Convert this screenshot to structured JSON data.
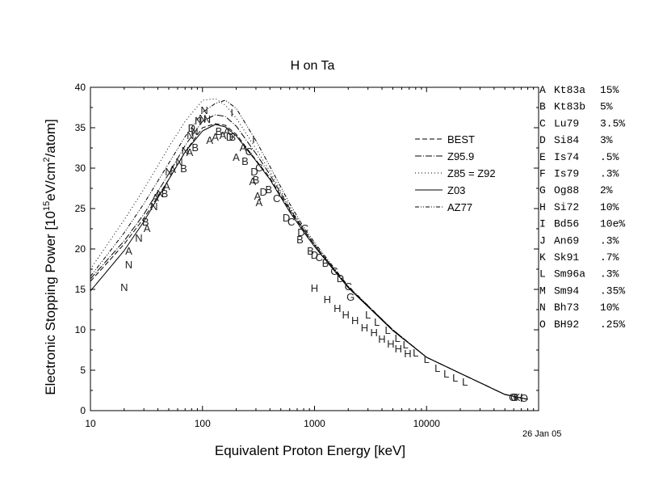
{
  "chart_data": {
    "type": "line",
    "title": "H on Ta",
    "xlabel": "Equivalent Proton Energy [keV]",
    "ylabel": {
      "pre": "Electronic Stopping Power [10",
      "sup1": "15",
      "mid": "eV/cm",
      "sup2": "2",
      "post": "/atom]"
    },
    "x_scale": "log",
    "xlim": [
      10,
      100000
    ],
    "ylim": [
      0,
      40
    ],
    "x_ticks": [
      {
        "v": 10,
        "label": "10"
      },
      {
        "v": 100,
        "label": "100"
      },
      {
        "v": 1000,
        "label": "1000"
      },
      {
        "v": 10000,
        "label": "10000"
      }
    ],
    "y_ticks": [
      0,
      5,
      10,
      15,
      20,
      25,
      30,
      35,
      40
    ],
    "grid": false,
    "legend_position": "upper-right-inside",
    "series": [
      {
        "name": "BEST",
        "dash": "6,3",
        "x": [
          10,
          20,
          30,
          50,
          70,
          100,
          130,
          160,
          200,
          300,
          400,
          600,
          800,
          1000,
          2000,
          5000,
          10000,
          50000,
          80000
        ],
        "y": [
          16.0,
          20.6,
          23.8,
          28.6,
          32.0,
          35.0,
          35.5,
          35.3,
          34.2,
          31.0,
          28.8,
          24.8,
          22.3,
          20.5,
          15.3,
          10.0,
          6.6,
          2.0,
          1.4
        ]
      },
      {
        "name": "Z95.9",
        "dash": "8,2,1,2",
        "x": [
          10,
          20,
          30,
          50,
          70,
          100,
          130,
          160,
          200,
          300,
          400,
          600,
          800,
          1000,
          2000,
          5000,
          10000,
          50000,
          80000
        ],
        "y": [
          16.3,
          21.0,
          24.3,
          29.3,
          32.8,
          35.8,
          36.6,
          36.4,
          35.2,
          31.8,
          29.2,
          25.0,
          22.4,
          20.5,
          15.3,
          10.0,
          6.6,
          2.0,
          1.4
        ]
      },
      {
        "name": "Z85 = Z92",
        "dash": "1,3",
        "x": [
          10,
          20,
          30,
          50,
          70,
          100,
          130,
          160,
          200,
          300,
          400,
          600,
          800,
          1000,
          2000,
          5000,
          10000,
          50000,
          80000
        ],
        "y": [
          17.5,
          23.6,
          27.4,
          32.6,
          35.8,
          38.4,
          38.6,
          37.8,
          36.2,
          32.4,
          29.6,
          25.2,
          22.5,
          20.6,
          15.3,
          10.0,
          6.6,
          2.0,
          1.4
        ]
      },
      {
        "name": "Z03",
        "dash": "",
        "x": [
          10,
          20,
          30,
          50,
          70,
          100,
          130,
          160,
          200,
          300,
          400,
          600,
          800,
          1000,
          2000,
          5000,
          10000,
          50000,
          80000
        ],
        "y": [
          14.8,
          19.8,
          23.4,
          28.6,
          32.0,
          34.6,
          35.4,
          35.1,
          34.0,
          30.9,
          28.6,
          24.6,
          22.1,
          20.3,
          15.2,
          9.9,
          6.6,
          2.0,
          1.4
        ]
      },
      {
        "name": "AZ77",
        "dash": "5,2,1,2,1,2",
        "x": [
          10,
          20,
          30,
          50,
          70,
          100,
          130,
          160,
          200,
          300,
          400,
          600,
          800,
          1000,
          2000,
          5000,
          10000,
          50000,
          80000
        ],
        "y": [
          16.6,
          22.0,
          25.6,
          30.6,
          33.9,
          36.9,
          38.0,
          38.4,
          37.4,
          33.4,
          30.2,
          25.6,
          22.7,
          20.8,
          15.4,
          10.0,
          6.6,
          2.0,
          1.4
        ]
      }
    ],
    "data_labels": [
      {
        "t": "N",
        "x": 20,
        "y": 15.3
      },
      {
        "t": "N",
        "x": 22,
        "y": 18.1
      },
      {
        "t": "A",
        "x": 22,
        "y": 19.8
      },
      {
        "t": "N",
        "x": 27,
        "y": 21.4
      },
      {
        "t": "A",
        "x": 32,
        "y": 22.6
      },
      {
        "t": "B",
        "x": 31,
        "y": 23.4
      },
      {
        "t": "N",
        "x": 37,
        "y": 25.3
      },
      {
        "t": "A",
        "x": 38,
        "y": 26.4
      },
      {
        "t": "N",
        "x": 42,
        "y": 26.9
      },
      {
        "t": "B",
        "x": 46,
        "y": 26.9
      },
      {
        "t": "A",
        "x": 48,
        "y": 27.8
      },
      {
        "t": "N",
        "x": 50,
        "y": 29.6
      },
      {
        "t": "A",
        "x": 54,
        "y": 29.9
      },
      {
        "t": "N",
        "x": 62,
        "y": 30.8
      },
      {
        "t": "B",
        "x": 68,
        "y": 30.0
      },
      {
        "t": "N",
        "x": 70,
        "y": 32.2
      },
      {
        "t": "A",
        "x": 77,
        "y": 32.0
      },
      {
        "t": "B",
        "x": 86,
        "y": 32.6
      },
      {
        "t": "N",
        "x": 78,
        "y": 34.1
      },
      {
        "t": "D",
        "x": 80,
        "y": 35.0
      },
      {
        "t": "N",
        "x": 85,
        "y": 34.6
      },
      {
        "t": "N",
        "x": 92,
        "y": 35.9
      },
      {
        "t": "N",
        "x": 100,
        "y": 36.2
      },
      {
        "t": "N",
        "x": 104,
        "y": 37.2
      },
      {
        "t": "N",
        "x": 110,
        "y": 36.1
      },
      {
        "t": "A",
        "x": 116,
        "y": 33.5
      },
      {
        "t": "A",
        "x": 130,
        "y": 33.9
      },
      {
        "t": "B",
        "x": 140,
        "y": 34.6
      },
      {
        "t": "A",
        "x": 152,
        "y": 34.1
      },
      {
        "t": "A",
        "x": 165,
        "y": 34.6
      },
      {
        "t": "D",
        "x": 175,
        "y": 33.9
      },
      {
        "t": "B",
        "x": 185,
        "y": 33.9
      },
      {
        "t": "I",
        "x": 183,
        "y": 36.9
      },
      {
        "t": "A",
        "x": 200,
        "y": 31.4
      },
      {
        "t": "A",
        "x": 230,
        "y": 32.6
      },
      {
        "t": "B",
        "x": 240,
        "y": 30.9
      },
      {
        "t": "C",
        "x": 260,
        "y": 32.1
      },
      {
        "t": "I",
        "x": 285,
        "y": 33.6
      },
      {
        "t": "A",
        "x": 280,
        "y": 28.4
      },
      {
        "t": "D",
        "x": 290,
        "y": 29.6
      },
      {
        "t": "B",
        "x": 300,
        "y": 28.6
      },
      {
        "t": "C",
        "x": 320,
        "y": 30.1
      },
      {
        "t": "A",
        "x": 310,
        "y": 26.6
      },
      {
        "t": "D",
        "x": 350,
        "y": 27.1
      },
      {
        "t": "A",
        "x": 320,
        "y": 25.8
      },
      {
        "t": "B",
        "x": 390,
        "y": 27.4
      },
      {
        "t": "C",
        "x": 460,
        "y": 26.3
      },
      {
        "t": "D",
        "x": 560,
        "y": 23.9
      },
      {
        "t": "C",
        "x": 620,
        "y": 23.4
      },
      {
        "t": "B",
        "x": 740,
        "y": 21.2
      },
      {
        "t": "D",
        "x": 760,
        "y": 22.1
      },
      {
        "t": "C",
        "x": 820,
        "y": 22.6
      },
      {
        "t": "B",
        "x": 920,
        "y": 19.8
      },
      {
        "t": "D",
        "x": 1000,
        "y": 19.3
      },
      {
        "t": "C",
        "x": 1100,
        "y": 19.0
      },
      {
        "t": "B",
        "x": 1250,
        "y": 18.3
      },
      {
        "t": "C",
        "x": 1500,
        "y": 17.3
      },
      {
        "t": "D",
        "x": 1700,
        "y": 16.4
      },
      {
        "t": "C",
        "x": 2000,
        "y": 15.4
      },
      {
        "t": "G",
        "x": 2100,
        "y": 14.1
      },
      {
        "t": "H",
        "x": 1000,
        "y": 15.2
      },
      {
        "t": "H",
        "x": 1300,
        "y": 13.8
      },
      {
        "t": "H",
        "x": 1600,
        "y": 12.7
      },
      {
        "t": "H",
        "x": 1900,
        "y": 11.9
      },
      {
        "t": "H",
        "x": 2300,
        "y": 11.2
      },
      {
        "t": "H",
        "x": 2800,
        "y": 10.3
      },
      {
        "t": "H",
        "x": 3400,
        "y": 9.7
      },
      {
        "t": "H",
        "x": 4000,
        "y": 8.9
      },
      {
        "t": "H",
        "x": 4800,
        "y": 8.3
      },
      {
        "t": "H",
        "x": 5600,
        "y": 7.7
      },
      {
        "t": "H",
        "x": 6800,
        "y": 7.1
      },
      {
        "t": "L",
        "x": 3000,
        "y": 11.9
      },
      {
        "t": "L",
        "x": 3600,
        "y": 11.0
      },
      {
        "t": "L",
        "x": 4500,
        "y": 10.0
      },
      {
        "t": "L",
        "x": 5500,
        "y": 9.0
      },
      {
        "t": "L",
        "x": 6500,
        "y": 8.2
      },
      {
        "t": "L",
        "x": 8000,
        "y": 7.2
      },
      {
        "t": "L",
        "x": 10000,
        "y": 6.4
      },
      {
        "t": "L",
        "x": 12500,
        "y": 5.3
      },
      {
        "t": "L",
        "x": 15000,
        "y": 4.6
      },
      {
        "t": "L",
        "x": 18000,
        "y": 4.1
      },
      {
        "t": "L",
        "x": 22000,
        "y": 3.6
      },
      {
        "t": "G",
        "x": 59000,
        "y": 1.7
      },
      {
        "t": "O",
        "x": 61000,
        "y": 1.7
      },
      {
        "t": "K",
        "x": 64000,
        "y": 1.7
      },
      {
        "t": "H",
        "x": 67000,
        "y": 1.7
      },
      {
        "t": "I",
        "x": 70000,
        "y": 1.6
      },
      {
        "t": "O",
        "x": 74000,
        "y": 1.6
      }
    ],
    "right_legend": [
      {
        "letter": "A",
        "ref": "Kt83a",
        "err": "15%"
      },
      {
        "letter": "B",
        "ref": "Kt83b",
        "err": "5%"
      },
      {
        "letter": "C",
        "ref": "Lu79",
        "err": "3.5%"
      },
      {
        "letter": "D",
        "ref": "Si84",
        "err": "3%"
      },
      {
        "letter": "E",
        "ref": "Is74",
        "err": ".5%"
      },
      {
        "letter": "F",
        "ref": "Is79",
        "err": ".3%"
      },
      {
        "letter": "G",
        "ref": "Og88",
        "err": "2%"
      },
      {
        "letter": "H",
        "ref": "Si72",
        "err": "10%"
      },
      {
        "letter": "I",
        "ref": "Bd56",
        "err": "10e%"
      },
      {
        "letter": "J",
        "ref": "An69",
        "err": ".3%"
      },
      {
        "letter": "K",
        "ref": "Sk91",
        "err": ".7%"
      },
      {
        "letter": "L",
        "ref": "Sm96a",
        "err": ".3%"
      },
      {
        "letter": "M",
        "ref": "Sm94",
        "err": ".35%"
      },
      {
        "letter": "N",
        "ref": "Bh73",
        "err": "10%"
      },
      {
        "letter": "O",
        "ref": "BH92",
        "err": ".25%"
      }
    ]
  },
  "date_stamp": "26 Jan 05"
}
